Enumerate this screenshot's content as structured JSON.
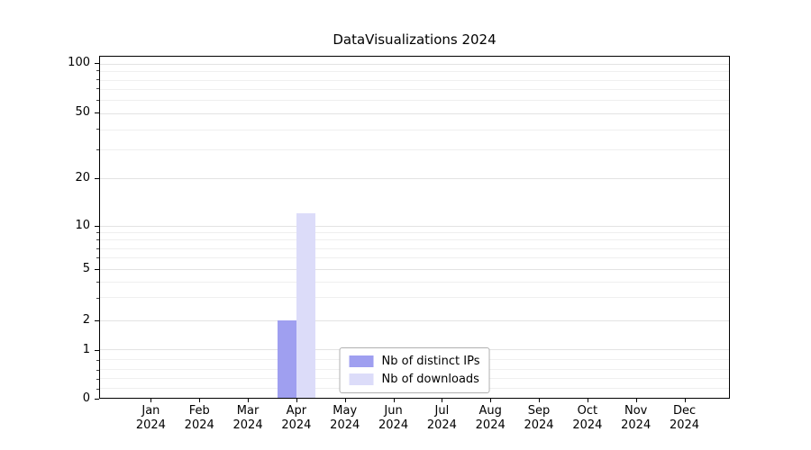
{
  "chart_data": {
    "type": "bar",
    "title": "DataVisualizations 2024",
    "categories": [
      "Jan",
      "Feb",
      "Mar",
      "Apr",
      "May",
      "Jun",
      "Jul",
      "Aug",
      "Sep",
      "Oct",
      "Nov",
      "Dec"
    ],
    "category_year": "2024",
    "series": [
      {
        "name": "Nb of distinct IPs",
        "slug": "distinct-ips",
        "color": "#9f9ff0",
        "values": [
          0,
          0,
          0,
          2,
          0,
          0,
          0,
          0,
          0,
          0,
          0,
          0
        ]
      },
      {
        "name": "Nb of downloads",
        "slug": "downloads",
        "color": "#dcdcf9",
        "values": [
          0,
          0,
          0,
          12,
          0,
          0,
          0,
          0,
          0,
          0,
          0,
          0
        ]
      }
    ],
    "yscale": "symlog",
    "yticks": [
      0,
      1,
      2,
      5,
      10,
      20,
      50,
      100
    ],
    "minor_yticks": [
      0.2,
      0.4,
      0.6,
      0.8,
      3,
      4,
      6,
      7,
      8,
      9,
      30,
      40,
      60,
      70,
      80,
      90
    ],
    "ylim": [
      0,
      100
    ],
    "grid": "horizontal",
    "legend_position": "lower-center"
  }
}
